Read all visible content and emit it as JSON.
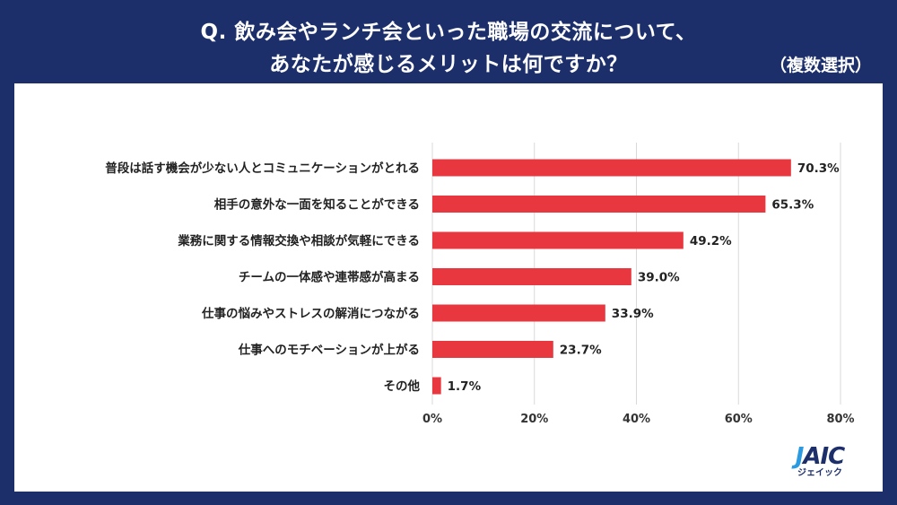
{
  "header": {
    "title_line1": "Q. 飲み会やランチ会といった職場の交流について、",
    "title_line2": "あなたが感じるメリットは何ですか？",
    "subtitle": "（複数選択）"
  },
  "logo": {
    "mark_j": "J",
    "mark_rest": "AIC",
    "sub": "ジェイック"
  },
  "colors": {
    "background": "#1c2f6b",
    "bar": "#e8373f",
    "grid": "#d9d9d9",
    "panel": "#ffffff"
  },
  "chart_data": {
    "type": "bar",
    "orientation": "horizontal",
    "title": "Q. 飲み会やランチ会といった職場の交流について、あなたが感じるメリットは何ですか？",
    "subtitle": "（複数選択）",
    "categories": [
      "普段は話す機会が少ない人とコミュニケーションがとれる",
      "相手の意外な一面を知ることができる",
      "業務に関する情報交換や相談が気軽にできる",
      "チームの一体感や連帯感が高まる",
      "仕事の悩みやストレスの解消につながる",
      "仕事へのモチベーションが上がる",
      "その他"
    ],
    "values": [
      70.3,
      65.3,
      49.2,
      39.0,
      33.9,
      23.7,
      1.7
    ],
    "value_labels": [
      "70.3%",
      "65.3%",
      "49.2%",
      "39.0%",
      "33.9%",
      "23.7%",
      "1.7%"
    ],
    "xlim": [
      0,
      80
    ],
    "ticks": [
      0,
      20,
      40,
      60,
      80
    ],
    "tick_labels": [
      "0%",
      "20%",
      "40%",
      "60%",
      "80%"
    ],
    "xlabel": "",
    "ylabel": "",
    "grid": true
  }
}
